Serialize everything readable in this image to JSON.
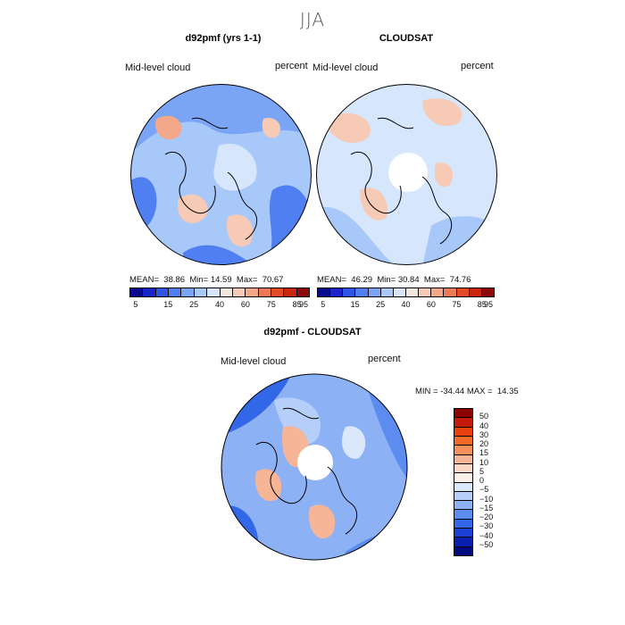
{
  "figure_title": "JJA",
  "panels": [
    {
      "title": "d92pmf (yrs 1-1)",
      "variable": "Mid-level cloud",
      "units": "percent",
      "mean_label": "MEAN=",
      "mean": "38.86",
      "min_label": "Min=",
      "min": "14.59",
      "max_label": "Max=",
      "max": "70.67"
    },
    {
      "title": "CLOUDSAT",
      "variable": "Mid-level cloud",
      "units": "percent",
      "mean_label": "MEAN=",
      "mean": "46.29",
      "min_label": "Min=",
      "min": "30.84",
      "max_label": "Max=",
      "max": "74.76"
    },
    {
      "title": "d92pmf - CLOUDSAT",
      "variable": "Mid-level cloud",
      "units": "percent",
      "minmax_text": "MIN = -34.44 MAX =  14.35"
    }
  ],
  "colorbar_top": {
    "colors": [
      "#0a0a8c",
      "#1a24c8",
      "#2f55e6",
      "#4f7ff0",
      "#7aa4f5",
      "#a9c8fa",
      "#d6e6fc",
      "#f3e6dc",
      "#f6cab4",
      "#f3a889",
      "#ec7a55",
      "#e24b26",
      "#c8260e",
      "#8c0a0a"
    ],
    "labels": [
      "5",
      "15",
      "25",
      "40",
      "60",
      "75",
      "85",
      "95"
    ]
  },
  "colorbar_diff": {
    "colors": [
      "#8c0000",
      "#c41a0a",
      "#e6400f",
      "#f26a2a",
      "#f58f5e",
      "#f7b597",
      "#fbd7c6",
      "#fdf0e8",
      "#dbe8fb",
      "#b6cffa",
      "#8db1f5",
      "#5c8cf0",
      "#3267e8",
      "#1a3fd4",
      "#0a1fb0",
      "#000a80"
    ],
    "labels": [
      "50",
      "40",
      "30",
      "20",
      "15",
      "10",
      "5",
      "0",
      "−5",
      "−10",
      "−15",
      "−20",
      "−30",
      "−40",
      "−50"
    ]
  },
  "map_colors": {
    "blue1": "#a9c8fa",
    "blue2": "#7aa4f5",
    "blue3": "#4f7ff0",
    "pale": "#d6e6fc",
    "peach": "#f6cab4",
    "salmon": "#f3a889",
    "white": "#ffffff",
    "coast": "#000000"
  }
}
